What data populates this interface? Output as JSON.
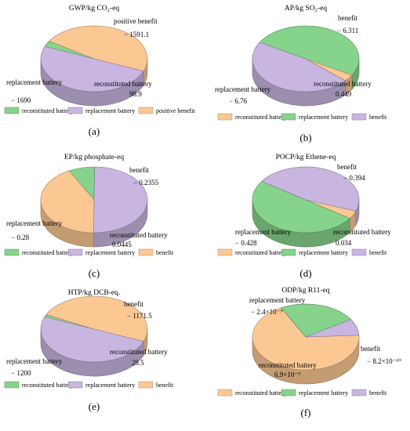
{
  "colors": {
    "green": "#86d38c",
    "purple": "#c8b6e0",
    "orange": "#fbc894"
  },
  "chart_data": [
    {
      "type": "pie",
      "panel": "(a)",
      "title": "GWP/kg CO₂-eq",
      "slices": [
        {
          "label": "replacement battery",
          "value": -1690,
          "value_text": "− 1690",
          "color": "purple"
        },
        {
          "label": "reconstituted battery",
          "value": 98.9,
          "value_text": "98.9",
          "color": "green"
        },
        {
          "label": "positive benefit",
          "value": -1591.1,
          "value_text": "− 1591.1",
          "color": "orange"
        }
      ],
      "legend": [
        {
          "label": "reconstituted battery",
          "color": "green"
        },
        {
          "label": "replacement battery",
          "color": "purple"
        },
        {
          "label": "positive benefit",
          "color": "orange"
        }
      ]
    },
    {
      "type": "pie",
      "panel": "(b)",
      "title": "AP/kg SO₂-eq",
      "slices": [
        {
          "label": "replacement battery",
          "value": -6.76,
          "value_text": "− 6.76",
          "color": "green"
        },
        {
          "label": "reconstituted battery",
          "value": 0.449,
          "value_text": "0.449",
          "color": "orange"
        },
        {
          "label": "benefit",
          "value": -6.311,
          "value_text": "− 6.311",
          "color": "purple"
        }
      ],
      "legend": [
        {
          "label": "reconstituted battery",
          "color": "orange"
        },
        {
          "label": "replacement battery",
          "color": "green"
        },
        {
          "label": "benefit",
          "color": "purple"
        }
      ]
    },
    {
      "type": "pie",
      "panel": "(c)",
      "title": "EP/kg phosphate-eq",
      "slices": [
        {
          "label": "replacement battery",
          "value": -0.28,
          "value_text": "− 0.28",
          "color": "purple"
        },
        {
          "label": "reconstituted battery",
          "value": 0.0445,
          "value_text": "0.0445",
          "color": "green"
        },
        {
          "label": "benefit",
          "value": -0.2355,
          "value_text": "− 0.2355",
          "color": "orange"
        }
      ],
      "legend": [
        {
          "label": "reconstituted battery",
          "color": "green"
        },
        {
          "label": "replacement battery",
          "color": "purple"
        },
        {
          "label": "benefit",
          "color": "orange"
        }
      ]
    },
    {
      "type": "pie",
      "panel": "(d)",
      "title": "POCP/kg Ethene-eq",
      "slices": [
        {
          "label": "replacement battery",
          "value": -0.428,
          "value_text": "− 0.428",
          "color": "green"
        },
        {
          "label": "reconstituted battery",
          "value": 0.034,
          "value_text": "0.034",
          "color": "orange"
        },
        {
          "label": "benefit",
          "value": -0.394,
          "value_text": "− 0.394",
          "color": "purple"
        }
      ],
      "legend": [
        {
          "label": "reconstituted battery",
          "color": "orange"
        },
        {
          "label": "replacement battery",
          "color": "green"
        },
        {
          "label": "benefit",
          "color": "purple"
        }
      ]
    },
    {
      "type": "pie",
      "panel": "(e)",
      "title": "HTP/kg DCB-eq.",
      "slices": [
        {
          "label": "replacement battery",
          "value": -1200,
          "value_text": "− 1200",
          "color": "purple"
        },
        {
          "label": "reconstituted battery",
          "value": 28.5,
          "value_text": "28.5",
          "color": "green"
        },
        {
          "label": "benefit",
          "value": -1171.5,
          "value_text": "− 1171.5",
          "color": "orange"
        }
      ],
      "legend": [
        {
          "label": "reconstituted battery",
          "color": "green"
        },
        {
          "label": "replacement battery",
          "color": "purple"
        },
        {
          "label": "benefit",
          "color": "orange"
        }
      ]
    },
    {
      "type": "pie",
      "panel": "(f)",
      "title": "ODP/kg R11-eq",
      "slices": [
        {
          "label": "replacement battery",
          "value": -2.4e-09,
          "value_text": "− 2.4×10⁻⁹",
          "color": "green"
        },
        {
          "label": "reconstituted battery",
          "value": 6.9e-09,
          "value_text": "6.9×10⁻⁹",
          "color": "orange"
        },
        {
          "label": "benefit",
          "value": -8.2e-10,
          "value_text": "− 8.2×10⁻¹⁰",
          "color": "purple"
        }
      ],
      "legend": [
        {
          "label": "reconstituted battery",
          "color": "orange"
        },
        {
          "label": "replacement battery",
          "color": "green"
        },
        {
          "label": "benefit",
          "color": "purple"
        }
      ]
    }
  ]
}
